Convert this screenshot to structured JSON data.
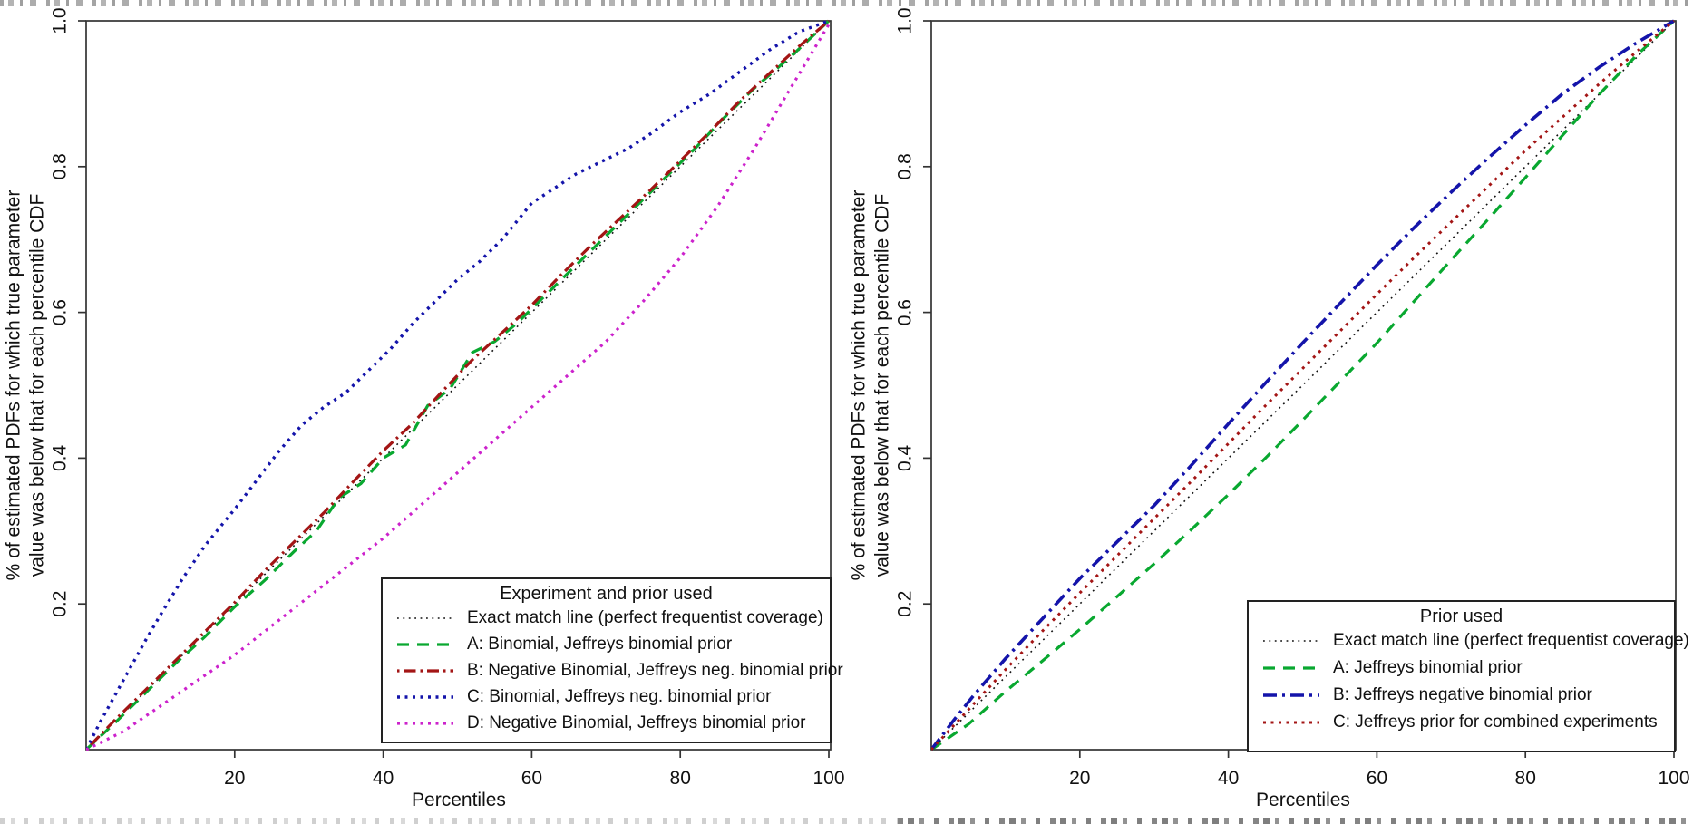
{
  "figure": {
    "background": "#ffffff",
    "axis_color": "#333333",
    "text_color": "#111111"
  },
  "chart_data": [
    {
      "type": "line",
      "title": "",
      "xlabel": "Percentiles",
      "ylabel_lines": [
        "% of estimated PDFs for which true parameter",
        "value was below that for each percentile CDF"
      ],
      "xlim": [
        0,
        100
      ],
      "ylim": [
        0,
        1
      ],
      "xticks": [
        "20",
        "40",
        "60",
        "80",
        "100"
      ],
      "xtick_values": [
        20,
        40,
        60,
        80,
        100
      ],
      "yticks": [
        "0.2",
        "0.4",
        "0.6",
        "0.8",
        "1.0"
      ],
      "ytick_values": [
        0.2,
        0.4,
        0.6,
        0.8,
        1.0
      ],
      "grid": false,
      "legend": {
        "title": "Experiment and prior used",
        "position": "bottom-right"
      },
      "series": [
        {
          "name": "Exact match line (perfect frequentist coverage)",
          "color": "#111111",
          "style": "dotted-fine",
          "width": 1.6,
          "points": [
            [
              0,
              0
            ],
            [
              100,
              1
            ]
          ]
        },
        {
          "name": "A: Binomial, Jeffreys binomial prior",
          "color": "#09A830",
          "style": "dashed",
          "width": 3.2,
          "points": [
            [
              0,
              0
            ],
            [
              4,
              0.038
            ],
            [
              8,
              0.078
            ],
            [
              12,
              0.118
            ],
            [
              16,
              0.155
            ],
            [
              20,
              0.196
            ],
            [
              24,
              0.232
            ],
            [
              28,
              0.272
            ],
            [
              31,
              0.3
            ],
            [
              34,
              0.345
            ],
            [
              37,
              0.365
            ],
            [
              40,
              0.4
            ],
            [
              43,
              0.418
            ],
            [
              46,
              0.472
            ],
            [
              49,
              0.495
            ],
            [
              52,
              0.545
            ],
            [
              55,
              0.56
            ],
            [
              58,
              0.585
            ],
            [
              62,
              0.625
            ],
            [
              66,
              0.665
            ],
            [
              70,
              0.705
            ],
            [
              74,
              0.745
            ],
            [
              78,
              0.785
            ],
            [
              82,
              0.825
            ],
            [
              86,
              0.868
            ],
            [
              90,
              0.908
            ],
            [
              95,
              0.952
            ],
            [
              100,
              1.0
            ]
          ]
        },
        {
          "name": "B: Negative Binomial, Jeffreys neg. binomial prior",
          "color": "#A31515",
          "style": "dashdot",
          "width": 3.2,
          "points": [
            [
              0,
              0
            ],
            [
              4,
              0.042
            ],
            [
              8,
              0.082
            ],
            [
              12,
              0.122
            ],
            [
              16,
              0.162
            ],
            [
              20,
              0.202
            ],
            [
              24,
              0.245
            ],
            [
              28,
              0.285
            ],
            [
              32,
              0.325
            ],
            [
              36,
              0.368
            ],
            [
              40,
              0.41
            ],
            [
              44,
              0.448
            ],
            [
              48,
              0.492
            ],
            [
              52,
              0.535
            ],
            [
              56,
              0.572
            ],
            [
              60,
              0.61
            ],
            [
              64,
              0.652
            ],
            [
              68,
              0.692
            ],
            [
              72,
              0.73
            ],
            [
              76,
              0.768
            ],
            [
              80,
              0.808
            ],
            [
              84,
              0.848
            ],
            [
              88,
              0.89
            ],
            [
              92,
              0.928
            ],
            [
              96,
              0.965
            ],
            [
              100,
              1.0
            ]
          ]
        },
        {
          "name": "C: Binomial, Jeffreys neg. binomial prior",
          "color": "#1414AA",
          "style": "dotted-bold",
          "width": 3.4,
          "points": [
            [
              0,
              0
            ],
            [
              2,
              0.04
            ],
            [
              5,
              0.095
            ],
            [
              8,
              0.15
            ],
            [
              10,
              0.185
            ],
            [
              13,
              0.235
            ],
            [
              16,
              0.28
            ],
            [
              20,
              0.33
            ],
            [
              23,
              0.37
            ],
            [
              26,
              0.41
            ],
            [
              29,
              0.445
            ],
            [
              32,
              0.47
            ],
            [
              35,
              0.49
            ],
            [
              38,
              0.52
            ],
            [
              41,
              0.55
            ],
            [
              44,
              0.585
            ],
            [
              47,
              0.615
            ],
            [
              50,
              0.645
            ],
            [
              53,
              0.67
            ],
            [
              56,
              0.7
            ],
            [
              60,
              0.75
            ],
            [
              63,
              0.77
            ],
            [
              66,
              0.79
            ],
            [
              70,
              0.81
            ],
            [
              73,
              0.825
            ],
            [
              76,
              0.845
            ],
            [
              80,
              0.875
            ],
            [
              84,
              0.9
            ],
            [
              88,
              0.93
            ],
            [
              92,
              0.96
            ],
            [
              96,
              0.985
            ],
            [
              100,
              1.0
            ]
          ]
        },
        {
          "name": "D: Negative Binomial, Jeffreys binomial prior",
          "color": "#CC22CC",
          "style": "dotted-bold",
          "width": 3.2,
          "points": [
            [
              0,
              0
            ],
            [
              5,
              0.025
            ],
            [
              10,
              0.06
            ],
            [
              15,
              0.095
            ],
            [
              20,
              0.13
            ],
            [
              25,
              0.17
            ],
            [
              30,
              0.21
            ],
            [
              35,
              0.25
            ],
            [
              40,
              0.29
            ],
            [
              45,
              0.335
            ],
            [
              50,
              0.38
            ],
            [
              55,
              0.425
            ],
            [
              60,
              0.47
            ],
            [
              65,
              0.515
            ],
            [
              70,
              0.56
            ],
            [
              75,
              0.615
            ],
            [
              80,
              0.675
            ],
            [
              85,
              0.745
            ],
            [
              90,
              0.825
            ],
            [
              95,
              0.91
            ],
            [
              100,
              0.995
            ]
          ]
        }
      ]
    },
    {
      "type": "line",
      "title": "",
      "xlabel": "Percentiles",
      "ylabel_lines": [
        "% of estimated PDFs for which true parameter",
        "value was below that for each percentile CDF"
      ],
      "xlim": [
        0,
        100
      ],
      "ylim": [
        0,
        1
      ],
      "xticks": [
        "20",
        "40",
        "60",
        "80",
        "100"
      ],
      "xtick_values": [
        20,
        40,
        60,
        80,
        100
      ],
      "yticks": [
        "0.2",
        "0.4",
        "0.6",
        "0.8",
        "1.0"
      ],
      "ytick_values": [
        0.2,
        0.4,
        0.6,
        0.8,
        1.0
      ],
      "grid": false,
      "legend": {
        "title": "Prior used",
        "position": "bottom-right"
      },
      "series": [
        {
          "name": "Exact match line (perfect frequentist coverage)",
          "color": "#111111",
          "style": "dotted-fine",
          "width": 1.6,
          "points": [
            [
              0,
              0
            ],
            [
              100,
              1
            ]
          ]
        },
        {
          "name": "A: Jeffreys binomial prior",
          "color": "#09A830",
          "style": "dashed",
          "width": 3.2,
          "points": [
            [
              0,
              0
            ],
            [
              5,
              0.035
            ],
            [
              10,
              0.08
            ],
            [
              15,
              0.122
            ],
            [
              20,
              0.165
            ],
            [
              25,
              0.21
            ],
            [
              30,
              0.255
            ],
            [
              35,
              0.302
            ],
            [
              40,
              0.35
            ],
            [
              45,
              0.4
            ],
            [
              50,
              0.452
            ],
            [
              55,
              0.505
            ],
            [
              60,
              0.558
            ],
            [
              65,
              0.615
            ],
            [
              70,
              0.672
            ],
            [
              75,
              0.728
            ],
            [
              80,
              0.785
            ],
            [
              85,
              0.843
            ],
            [
              90,
              0.9
            ],
            [
              95,
              0.953
            ],
            [
              100,
              1.0
            ]
          ]
        },
        {
          "name": "B: Jeffreys negative binomial prior",
          "color": "#1414AA",
          "style": "dashdot-bold",
          "width": 3.6,
          "points": [
            [
              0,
              0
            ],
            [
              3,
              0.04
            ],
            [
              6,
              0.078
            ],
            [
              10,
              0.125
            ],
            [
              15,
              0.18
            ],
            [
              20,
              0.235
            ],
            [
              25,
              0.285
            ],
            [
              30,
              0.335
            ],
            [
              35,
              0.39
            ],
            [
              40,
              0.447
            ],
            [
              45,
              0.503
            ],
            [
              50,
              0.558
            ],
            [
              55,
              0.612
            ],
            [
              60,
              0.665
            ],
            [
              65,
              0.716
            ],
            [
              70,
              0.765
            ],
            [
              75,
              0.812
            ],
            [
              80,
              0.857
            ],
            [
              85,
              0.9
            ],
            [
              90,
              0.937
            ],
            [
              95,
              0.97
            ],
            [
              100,
              1.0
            ]
          ]
        },
        {
          "name": "C: Jeffreys prior for combined experiments",
          "color": "#A31515",
          "style": "dotted-bold",
          "width": 3.0,
          "points": [
            [
              0,
              0
            ],
            [
              5,
              0.055
            ],
            [
              10,
              0.11
            ],
            [
              15,
              0.163
            ],
            [
              20,
              0.215
            ],
            [
              25,
              0.266
            ],
            [
              30,
              0.317
            ],
            [
              35,
              0.368
            ],
            [
              40,
              0.42
            ],
            [
              45,
              0.472
            ],
            [
              50,
              0.523
            ],
            [
              55,
              0.574
            ],
            [
              60,
              0.625
            ],
            [
              65,
              0.675
            ],
            [
              70,
              0.724
            ],
            [
              75,
              0.773
            ],
            [
              80,
              0.822
            ],
            [
              85,
              0.868
            ],
            [
              90,
              0.914
            ],
            [
              95,
              0.958
            ],
            [
              100,
              1.0
            ]
          ]
        }
      ]
    }
  ]
}
